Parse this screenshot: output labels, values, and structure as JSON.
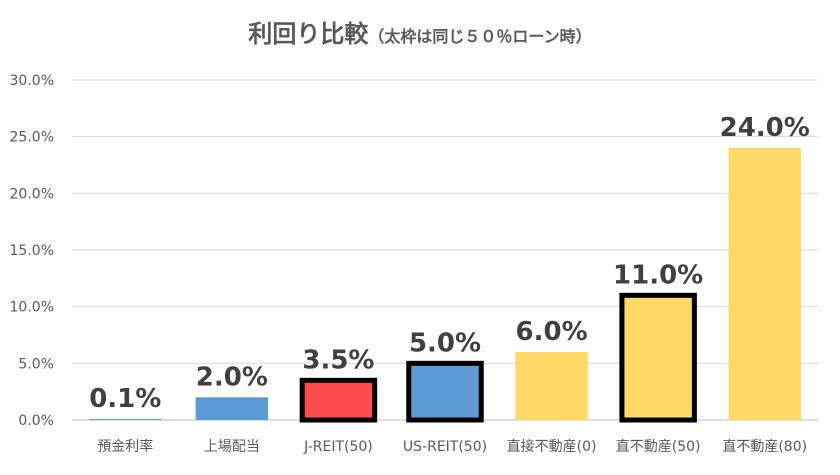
{
  "chart_data": {
    "type": "bar",
    "title": "利回り比較",
    "subtitle": "（太枠は同じ５０％ローン時）",
    "xlabel": "",
    "ylabel": "",
    "ylim": [
      0,
      30
    ],
    "y_ticks": [
      "0.0%",
      "5.0%",
      "10.0%",
      "15.0%",
      "20.0%",
      "25.0%",
      "30.0%"
    ],
    "grid": true,
    "legend": "none",
    "categories": [
      "預金利率",
      "上場配当",
      "J-REIT(50)",
      "US-REIT(50)",
      "直接不動産(0)",
      "直不動産(50)",
      "直不動産(80)"
    ],
    "values": [
      0.1,
      2.0,
      3.5,
      5.0,
      6.0,
      11.0,
      24.0
    ],
    "data_labels": [
      "0.1%",
      "2.0%",
      "3.5%",
      "5.0%",
      "6.0%",
      "11.0%",
      "24.0%"
    ],
    "bar_colors": [
      "#70AD9C",
      "#5B9BD5",
      "#FF4B4B",
      "#5B9BD5",
      "#FFD966",
      "#FFD966",
      "#FFD966"
    ],
    "bold_outline": [
      false,
      false,
      true,
      true,
      false,
      true,
      false
    ]
  }
}
